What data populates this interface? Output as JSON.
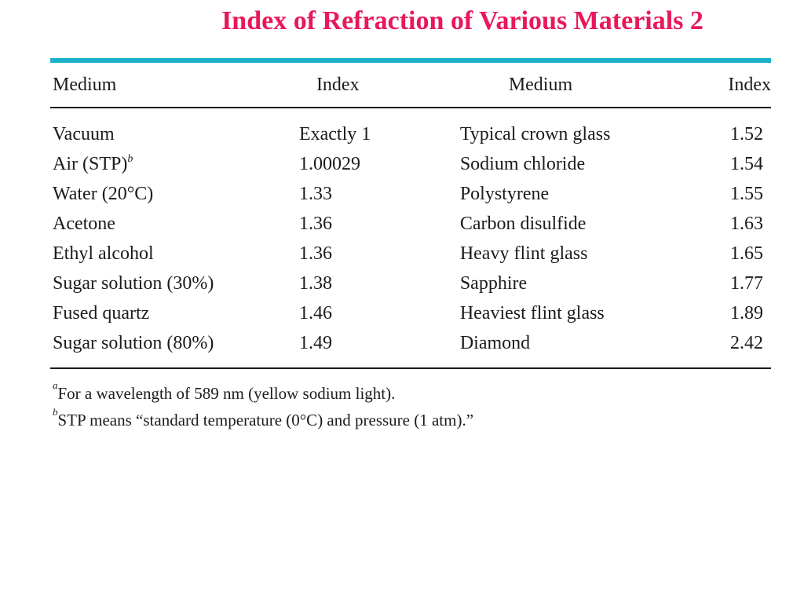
{
  "slide": {
    "title": "Index of Refraction of Various Materials 2"
  },
  "table": {
    "headers": [
      "Medium",
      "Index",
      "Medium",
      "Index"
    ],
    "rows": [
      {
        "medium1": "Vacuum",
        "sup1": "",
        "index1": "Exactly 1",
        "medium2": "Typical crown glass",
        "index2": "1.52"
      },
      {
        "medium1": "Air (STP)",
        "sup1": "b",
        "index1": "1.00029",
        "medium2": "Sodium chloride",
        "index2": "1.54"
      },
      {
        "medium1": "Water (20°C)",
        "sup1": "",
        "index1": "1.33",
        "medium2": "Polystyrene",
        "index2": "1.55"
      },
      {
        "medium1": "Acetone",
        "sup1": "",
        "index1": "1.36",
        "medium2": "Carbon disulfide",
        "index2": "1.63"
      },
      {
        "medium1": "Ethyl alcohol",
        "sup1": "",
        "index1": "1.36",
        "medium2": "Heavy flint glass",
        "index2": "1.65"
      },
      {
        "medium1": "Sugar solution (30%)",
        "sup1": "",
        "index1": "1.38",
        "medium2": "Sapphire",
        "index2": "1.77"
      },
      {
        "medium1": "Fused quartz",
        "sup1": "",
        "index1": "1.46",
        "medium2": "Heaviest flint glass",
        "index2": "1.89"
      },
      {
        "medium1": "Sugar solution (80%)",
        "sup1": "",
        "index1": "1.49",
        "medium2": "Diamond",
        "index2": "2.42"
      }
    ]
  },
  "footnotes": [
    {
      "marker": "a",
      "text": "For a wavelength of 589 nm (yellow sodium light)."
    },
    {
      "marker": "b",
      "text": "STP means “standard temperature (0°C) and pressure (1 atm).”"
    }
  ],
  "colors": {
    "title": "#e8185a",
    "top_rule": "#1ab1c9",
    "text": "#1b1b1b"
  }
}
